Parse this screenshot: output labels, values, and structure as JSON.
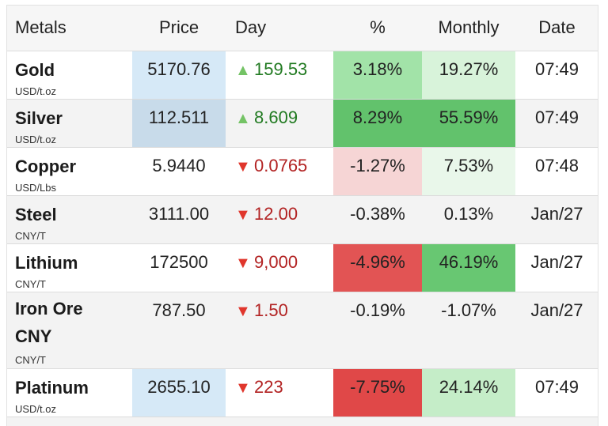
{
  "table": {
    "headers": {
      "name": "Metals",
      "price": "Price",
      "day": "Day",
      "percent": "%",
      "monthly": "Monthly",
      "date": "Date"
    },
    "rows": [
      {
        "name": "Gold",
        "unit": "USD/t.oz",
        "price": "5170.76",
        "day": "159.53",
        "day_dir": "up",
        "percent": "3.18%",
        "monthly": "19.27%",
        "date": "07:49",
        "price_bg": "#d6e9f7",
        "percent_bg": "#a2e3a8",
        "monthly_bg": "#d8f3da"
      },
      {
        "name": "Silver",
        "unit": "USD/t.oz",
        "price": "112.511",
        "day": "8.609",
        "day_dir": "up",
        "percent": "8.29%",
        "monthly": "55.59%",
        "date": "07:49",
        "price_bg": "#c8dbea",
        "percent_bg": "#62c26c",
        "monthly_bg": "#62c26c"
      },
      {
        "name": "Copper",
        "unit": "USD/Lbs",
        "price": "5.9440",
        "day": "0.0765",
        "day_dir": "down",
        "percent": "-1.27%",
        "monthly": "7.53%",
        "date": "07:48",
        "price_bg": "",
        "percent_bg": "#f6d5d5",
        "monthly_bg": "#e9f7ea"
      },
      {
        "name": "Steel",
        "unit": "CNY/T",
        "price": "3111.00",
        "day": "12.00",
        "day_dir": "down",
        "percent": "-0.38%",
        "monthly": "0.13%",
        "date": "Jan/27",
        "price_bg": "",
        "percent_bg": "",
        "monthly_bg": ""
      },
      {
        "name": "Lithium",
        "unit": "CNY/T",
        "price": "172500",
        "day": "9,000",
        "day_dir": "down",
        "percent": "-4.96%",
        "monthly": "46.19%",
        "date": "Jan/27",
        "price_bg": "",
        "percent_bg": "#e25454",
        "monthly_bg": "#68c772"
      },
      {
        "name": "Iron Ore CNY",
        "unit": "CNY/T",
        "price": "787.50",
        "day": "1.50",
        "day_dir": "down",
        "percent": "-0.19%",
        "monthly": "-1.07%",
        "date": "Jan/27",
        "price_bg": "",
        "percent_bg": "",
        "monthly_bg": ""
      },
      {
        "name": "Platinum",
        "unit": "USD/t.oz",
        "price": "2655.10",
        "day": "223",
        "day_dir": "down",
        "percent": "-7.75%",
        "monthly": "24.14%",
        "date": "07:49",
        "price_bg": "#d6e9f7",
        "percent_bg": "#e04848",
        "monthly_bg": "#c5edc8"
      }
    ],
    "arrows": {
      "up": "▲",
      "down": "▼"
    }
  }
}
